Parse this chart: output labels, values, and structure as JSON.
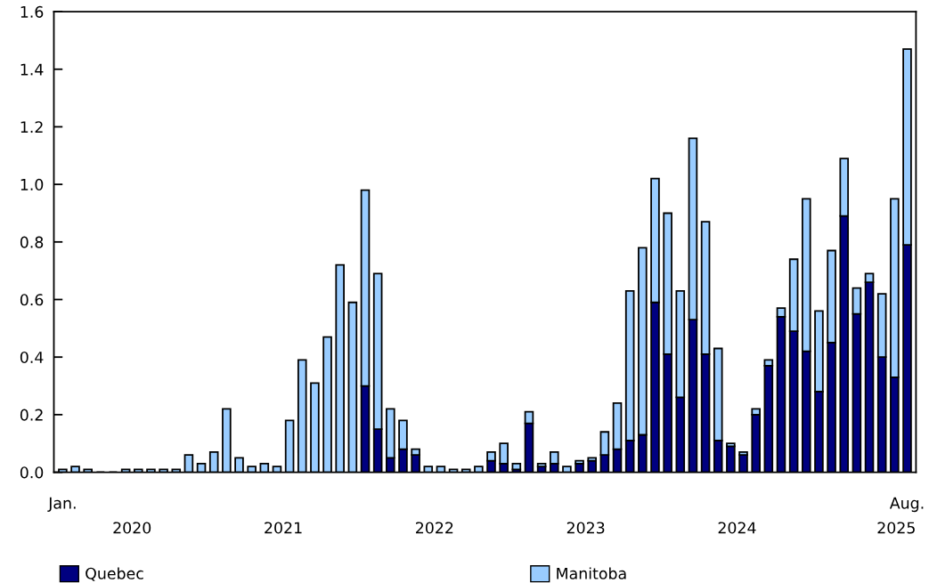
{
  "chart_data": {
    "type": "bar",
    "stacked": true,
    "categories": [
      "Jan.",
      null,
      null,
      null,
      null,
      null,
      null,
      null,
      null,
      null,
      null,
      null,
      null,
      null,
      null,
      null,
      null,
      null,
      null,
      null,
      null,
      null,
      null,
      null,
      null,
      null,
      null,
      null,
      null,
      null,
      null,
      null,
      null,
      null,
      null,
      null,
      null,
      null,
      null,
      null,
      null,
      null,
      null,
      null,
      null,
      null,
      null,
      null,
      null,
      null,
      null,
      null,
      null,
      null,
      null,
      null,
      null,
      null,
      null,
      null,
      null,
      null,
      null,
      null,
      null,
      null,
      null,
      "Aug."
    ],
    "series": [
      {
        "name": "Quebec",
        "color": "#000080",
        "values": [
          0,
          0,
          0,
          0,
          0,
          0,
          0,
          0,
          0,
          0,
          0,
          0,
          0,
          0,
          0,
          0,
          0,
          0,
          0,
          0,
          0,
          0,
          0,
          0,
          0.3,
          0.15,
          0.05,
          0.08,
          0.06,
          0,
          0,
          0,
          0,
          0,
          0.04,
          0.03,
          0.01,
          0.17,
          0.02,
          0.03,
          0,
          0.03,
          0.04,
          0.06,
          0.08,
          0.11,
          0.13,
          0.59,
          0.41,
          0.26,
          0.53,
          0.41,
          0.11,
          0.09,
          0.06,
          0.2,
          0.37,
          0.54,
          0.49,
          0.42,
          0.28,
          0.45,
          0.89,
          0.55,
          0.66,
          0.4,
          0.33,
          0.79
        ]
      },
      {
        "name": "Manitoba",
        "color": "#99ccff",
        "values": [
          0.01,
          0.02,
          0.01,
          0,
          0,
          0.01,
          0.01,
          0.01,
          0.01,
          0.01,
          0.06,
          0.03,
          0.07,
          0.22,
          0.05,
          0.02,
          0.03,
          0.02,
          0.18,
          0.39,
          0.31,
          0.47,
          0.72,
          0.59,
          0.68,
          0.54,
          0.17,
          0.1,
          0.02,
          0.02,
          0.02,
          0.01,
          0.01,
          0.02,
          0.03,
          0.07,
          0.02,
          0.04,
          0.01,
          0.04,
          0.02,
          0.01,
          0.01,
          0.08,
          0.16,
          0.52,
          0.65,
          0.43,
          0.49,
          0.37,
          0.63,
          0.46,
          0.32,
          0.01,
          0.01,
          0.02,
          0.02,
          0.03,
          0.25,
          0.53,
          0.28,
          0.32,
          0.2,
          0.09,
          0.03,
          0.22,
          0.62,
          0.68
        ]
      }
    ],
    "annotations": [
      "2020",
      "2021",
      "2022",
      "2023",
      "2024",
      "2025"
    ],
    "ylim": [
      0,
      1.6
    ],
    "yticks": [
      {
        "value": 0,
        "label": "0.0"
      },
      {
        "value": 0.2,
        "label": "0.2"
      },
      {
        "value": 0.4,
        "label": "0.4"
      },
      {
        "value": 0.6,
        "label": "0.6"
      },
      {
        "value": 0.8,
        "label": "0.8"
      },
      {
        "value": 1.0,
        "label": "1.0"
      },
      {
        "value": 1.2,
        "label": "1.2"
      },
      {
        "value": 1.4,
        "label": "1.4"
      },
      {
        "value": 1.6,
        "label": "1.6"
      }
    ],
    "grid": false,
    "legend": "bottom"
  }
}
